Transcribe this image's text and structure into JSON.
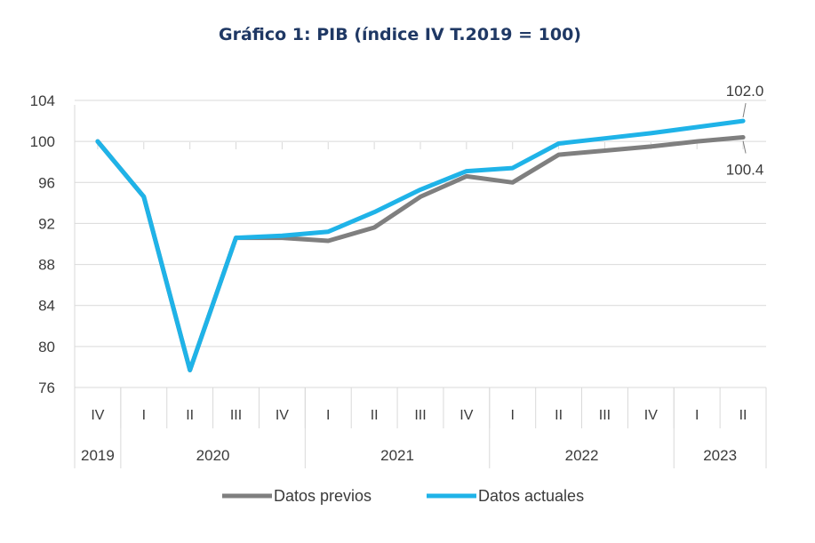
{
  "chart_data": {
    "type": "line",
    "title": "Gráfico 1: PIB (índice IV T.2019 = 100)",
    "xlabel": "",
    "ylabel": "",
    "ylim": [
      76,
      104
    ],
    "yticks": [
      104,
      100,
      96,
      92,
      88,
      84,
      80,
      76
    ],
    "grid": true,
    "legend_position": "bottom",
    "categories": [
      "IV",
      "I",
      "II",
      "III",
      "IV",
      "I",
      "II",
      "III",
      "IV",
      "I",
      "II",
      "III",
      "IV",
      "I",
      "II"
    ],
    "years": [
      {
        "label": "2019",
        "span": 1
      },
      {
        "label": "2020",
        "span": 4
      },
      {
        "label": "2021",
        "span": 4
      },
      {
        "label": "2022",
        "span": 4
      },
      {
        "label": "2023",
        "span": 2
      }
    ],
    "series": [
      {
        "name": "Datos previos",
        "color": "#7f7f7f",
        "values": [
          100.0,
          94.6,
          77.7,
          90.6,
          90.6,
          90.3,
          91.6,
          94.6,
          96.6,
          96.0,
          98.7,
          99.1,
          99.5,
          100.0,
          100.4
        ]
      },
      {
        "name": "Datos actuales",
        "color": "#1fb3e8",
        "values": [
          100.0,
          94.6,
          77.7,
          90.6,
          90.8,
          91.2,
          93.1,
          95.3,
          97.1,
          97.4,
          99.8,
          100.3,
          100.8,
          101.4,
          102.0
        ]
      }
    ],
    "annotations": [
      {
        "text": "102.0",
        "series": "Datos actuales",
        "index": 14
      },
      {
        "text": "100.4",
        "series": "Datos previos",
        "index": 14
      }
    ]
  }
}
